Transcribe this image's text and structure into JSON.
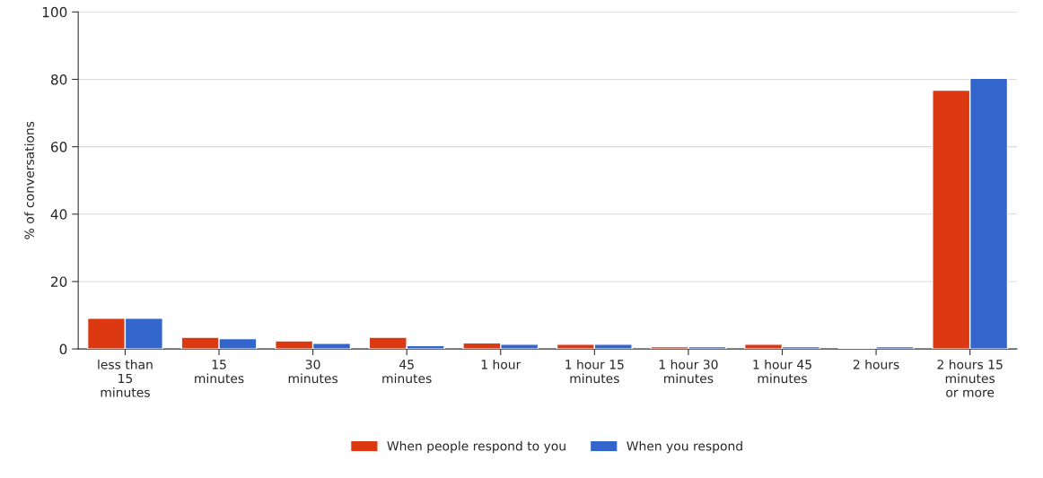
{
  "chart_data": {
    "type": "bar",
    "ylabel": "% of conversations",
    "categories": [
      "less than\n15\nminutes",
      "15\nminutes",
      "30\nminutes",
      "45\nminutes",
      "1 hour",
      "1 hour 15\nminutes",
      "1 hour 30\nminutes",
      "1 hour 45\nminutes",
      "2 hours",
      "2 hours 15\nminutes\nor more"
    ],
    "series": [
      {
        "name": "When people respond to you",
        "color": "#dc3912",
        "values": [
          9.1,
          3.5,
          2.4,
          3.5,
          1.8,
          1.4,
          0.7,
          1.4,
          0.3,
          76.8
        ]
      },
      {
        "name": "When you respond",
        "color": "#3366cc",
        "values": [
          9.1,
          3.1,
          1.7,
          1.0,
          1.4,
          1.4,
          0.7,
          0.7,
          0.7,
          80.3
        ]
      }
    ],
    "ylim": [
      0,
      100
    ],
    "yticks": [
      0,
      20,
      40,
      60,
      80,
      100
    ],
    "grid": "y",
    "legend": "bottom"
  }
}
